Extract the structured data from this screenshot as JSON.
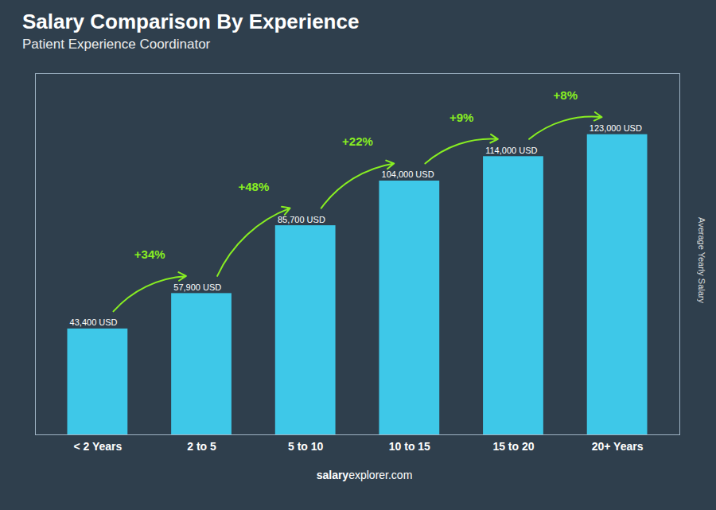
{
  "chart_data": {
    "type": "bar",
    "title": "Salary Comparison By Experience",
    "subtitle": "Patient Experience Coordinator",
    "ylabel": "Average Yearly Salary",
    "categories": [
      "< 2 Years",
      "2 to 5",
      "5 to 10",
      "10 to 15",
      "15 to 20",
      "20+ Years"
    ],
    "values": [
      43400,
      57900,
      85700,
      104000,
      114000,
      123000
    ],
    "value_labels": [
      "43,400 USD",
      "57,900 USD",
      "85,700 USD",
      "104,000 USD",
      "114,000 USD",
      "123,000 USD"
    ],
    "data_labels": true,
    "color": "#3ec8e8",
    "ylim": [
      0,
      148000
    ],
    "tick_labels": "x",
    "grid": false,
    "annotations": [
      {
        "text": "+34%",
        "color": "#88ee22"
      },
      {
        "text": "+48%",
        "color": "#88ee22"
      },
      {
        "text": "+22%",
        "color": "#88ee22"
      },
      {
        "text": "+9%",
        "color": "#88ee22"
      },
      {
        "text": "+8%",
        "color": "#88ee22"
      }
    ],
    "footer_bold": "salary",
    "footer_normal": "explorer.com"
  }
}
